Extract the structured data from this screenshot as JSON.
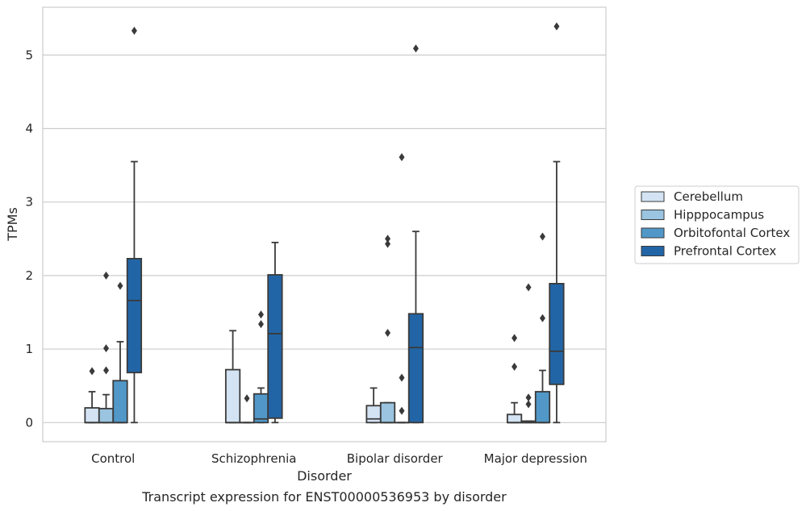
{
  "caption": "Transcript expression for ENST00000536953 by disorder",
  "colors": {
    "Cerebellum": "#d3e3f3",
    "Hipppocampus": "#9ac4e0",
    "Orbitofontal Cortex": "#5198c8",
    "Prefrontal Cortex": "#2265a6",
    "grid": "#cccccc",
    "line": "#3a3a3a"
  },
  "chart_data": {
    "type": "box",
    "xlabel": "Disorder",
    "ylabel": "TPMs",
    "ylim": [
      -0.26,
      5.65
    ],
    "yticks": [
      0,
      1,
      2,
      3,
      4,
      5
    ],
    "grid": "horizontal",
    "legend_position": "right",
    "categories": [
      "Control",
      "Schizophrenia",
      "Bipolar disorder",
      "Major depression"
    ],
    "series": [
      {
        "name": "Cerebellum",
        "boxes": [
          {
            "whislo": 0,
            "q1": 0,
            "med": 0,
            "q3": 0.2,
            "whishi": 0.42,
            "fliers": [
              0.7
            ]
          },
          {
            "whislo": 0,
            "q1": 0,
            "med": 0,
            "q3": 0.72,
            "whishi": 1.25,
            "fliers": []
          },
          {
            "whislo": 0,
            "q1": 0,
            "med": 0.05,
            "q3": 0.23,
            "whishi": 0.47,
            "fliers": []
          },
          {
            "whislo": 0,
            "q1": 0,
            "med": 0,
            "q3": 0.11,
            "whishi": 0.27,
            "fliers": [
              0.76,
              1.15
            ]
          }
        ]
      },
      {
        "name": "Hipppocampus",
        "boxes": [
          {
            "whislo": 0,
            "q1": 0,
            "med": 0,
            "q3": 0.19,
            "whishi": 0.38,
            "fliers": [
              0.71,
              1.01,
              2.0
            ]
          },
          {
            "whislo": 0,
            "q1": 0,
            "med": 0,
            "q3": 0,
            "whishi": 0,
            "fliers": [
              0.33
            ]
          },
          {
            "whislo": 0,
            "q1": 0,
            "med": 0,
            "q3": 0.27,
            "whishi": 0.27,
            "fliers": [
              1.22,
              2.43,
              2.5
            ]
          },
          {
            "whislo": 0,
            "q1": 0,
            "med": 0,
            "q3": 0.02,
            "whishi": 0.02,
            "fliers": [
              0.25,
              0.34,
              1.84
            ]
          }
        ]
      },
      {
        "name": "Orbitofontal Cortex",
        "boxes": [
          {
            "whislo": 0,
            "q1": 0,
            "med": 0,
            "q3": 0.57,
            "whishi": 1.1,
            "fliers": [
              1.86
            ]
          },
          {
            "whislo": 0,
            "q1": 0,
            "med": 0.05,
            "q3": 0.39,
            "whishi": 0.47,
            "fliers": [
              1.34,
              1.47
            ]
          },
          {
            "whislo": 0,
            "q1": 0,
            "med": 0,
            "q3": 0,
            "whishi": 0,
            "fliers": [
              0.16,
              0.61,
              3.61
            ]
          },
          {
            "whislo": 0,
            "q1": 0,
            "med": 0,
            "q3": 0.42,
            "whishi": 0.71,
            "fliers": [
              1.42,
              2.53
            ]
          }
        ]
      },
      {
        "name": "Prefrontal Cortex",
        "boxes": [
          {
            "whislo": 0,
            "q1": 0.68,
            "med": 1.66,
            "q3": 2.23,
            "whishi": 3.55,
            "fliers": [
              5.33
            ]
          },
          {
            "whislo": 0,
            "q1": 0.06,
            "med": 1.21,
            "q3": 2.01,
            "whishi": 2.45,
            "fliers": []
          },
          {
            "whislo": 0,
            "q1": 0,
            "med": 1.02,
            "q3": 1.48,
            "whishi": 2.6,
            "fliers": [
              5.09
            ]
          },
          {
            "whislo": 0,
            "q1": 0.52,
            "med": 0.97,
            "q3": 1.89,
            "whishi": 3.55,
            "fliers": [
              5.39
            ]
          }
        ]
      }
    ]
  }
}
